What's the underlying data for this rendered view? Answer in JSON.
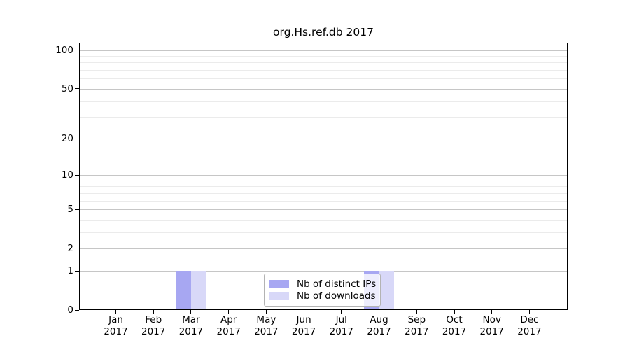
{
  "figure": {
    "title": "org.Hs.ref.db 2017"
  },
  "chart_data": {
    "type": "bar",
    "title": "org.Hs.ref.db 2017",
    "x_axis": {
      "categories": [
        "Jan",
        "Feb",
        "Mar",
        "Apr",
        "May",
        "Jun",
        "Jul",
        "Aug",
        "Sep",
        "Oct",
        "Nov",
        "Dec"
      ],
      "year": "2017"
    },
    "y_axis": {
      "scale": "log1p",
      "major_ticks": [
        0,
        1,
        2,
        5,
        10,
        20,
        50,
        100
      ],
      "minor_ticks": [
        3,
        4,
        6,
        7,
        8,
        9,
        30,
        40,
        60,
        70,
        80,
        90
      ],
      "ylim": [
        0,
        115
      ]
    },
    "series": [
      {
        "name": "Nb of distinct IPs",
        "color": "#a7a7f2",
        "values": [
          0,
          0,
          1,
          0,
          0,
          0,
          0,
          1,
          0,
          0,
          0,
          0
        ]
      },
      {
        "name": "Nb of downloads",
        "color": "#d8d8f8",
        "values": [
          0,
          0,
          1,
          0,
          0,
          0,
          0,
          1,
          0,
          0,
          0,
          0
        ]
      }
    ],
    "legend": {
      "position": "bottom-center"
    },
    "grid": {
      "major_color": "#c6c6c6",
      "minor_color": "#ebebeb"
    }
  }
}
